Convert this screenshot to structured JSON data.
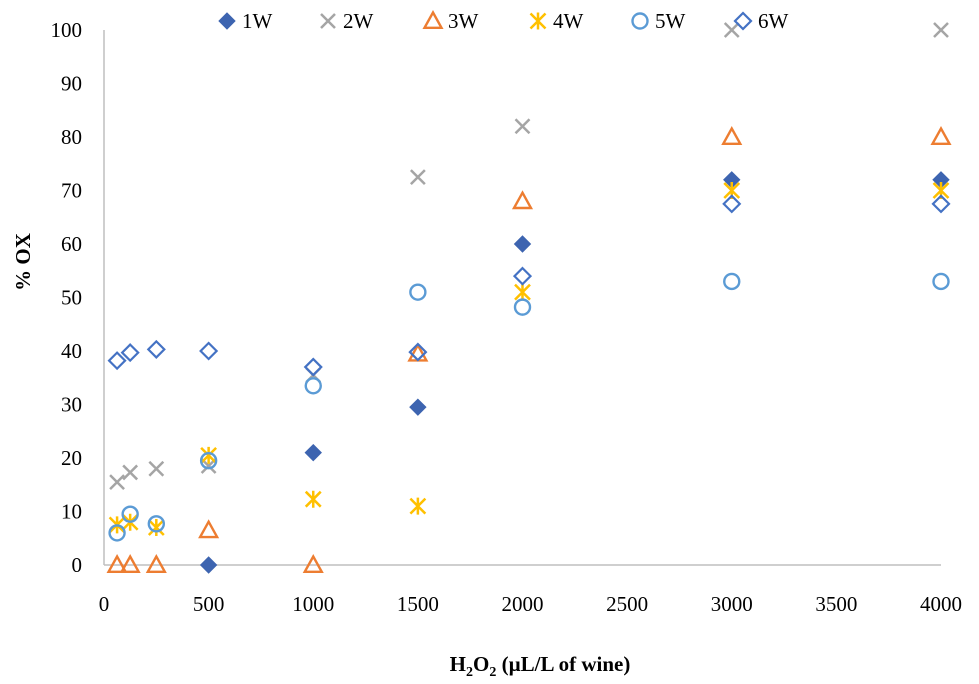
{
  "chart_data": {
    "type": "scatter",
    "title": "",
    "xlabel": "H2O2 (µL/L of wine)",
    "xlabel_parts": {
      "base1": "H",
      "sub1": "2",
      "base2": "O",
      "sub2": "2",
      "rest": " (µL/L of wine)"
    },
    "ylabel": "% OX",
    "xlim": [
      0,
      4000
    ],
    "ylim": [
      0,
      100
    ],
    "x_ticks": [
      0,
      500,
      1000,
      1500,
      2000,
      2500,
      3000,
      3500,
      4000
    ],
    "y_ticks": [
      0,
      10,
      20,
      30,
      40,
      50,
      60,
      70,
      80,
      90,
      100
    ],
    "grid": false,
    "legend_position": "top",
    "series": [
      {
        "name": "1W",
        "marker": "diamond-filled",
        "color": "#3d64b0",
        "points": [
          [
            500,
            0
          ],
          [
            1000,
            21
          ],
          [
            1500,
            29.5
          ],
          [
            2000,
            60
          ],
          [
            3000,
            72
          ],
          [
            4000,
            72
          ]
        ]
      },
      {
        "name": "2W",
        "marker": "x",
        "color": "#a5a5a5",
        "points": [
          [
            62.5,
            15.5
          ],
          [
            125,
            17.3
          ],
          [
            250,
            18
          ],
          [
            500,
            18.5
          ],
          [
            1000,
            35.5
          ],
          [
            1500,
            72.5
          ],
          [
            2000,
            82
          ],
          [
            3000,
            100
          ],
          [
            4000,
            100
          ]
        ]
      },
      {
        "name": "3W",
        "marker": "triangle",
        "color": "#ed7d31",
        "points": [
          [
            62.5,
            0
          ],
          [
            125,
            0
          ],
          [
            250,
            0
          ],
          [
            500,
            6.5
          ],
          [
            1000,
            0
          ],
          [
            1500,
            39.5
          ],
          [
            2000,
            68
          ],
          [
            3000,
            80
          ],
          [
            4000,
            80
          ]
        ]
      },
      {
        "name": "4W",
        "marker": "star",
        "color": "#ffc000",
        "points": [
          [
            62.5,
            7.5
          ],
          [
            125,
            8
          ],
          [
            250,
            7
          ],
          [
            500,
            20.5
          ],
          [
            1000,
            12.3
          ],
          [
            1500,
            11
          ],
          [
            2000,
            51
          ],
          [
            3000,
            70
          ],
          [
            4000,
            70
          ]
        ]
      },
      {
        "name": "5W",
        "marker": "circle",
        "color": "#5b9bd5",
        "points": [
          [
            62.5,
            6
          ],
          [
            125,
            9.5
          ],
          [
            250,
            7.7
          ],
          [
            500,
            19.5
          ],
          [
            1000,
            33.5
          ],
          [
            1500,
            51
          ],
          [
            2000,
            48.2
          ],
          [
            3000,
            53
          ],
          [
            4000,
            53
          ]
        ]
      },
      {
        "name": "6W",
        "marker": "diamond-open",
        "color": "#4472c4",
        "points": [
          [
            62.5,
            38.2
          ],
          [
            125,
            39.7
          ],
          [
            250,
            40.3
          ],
          [
            500,
            40
          ],
          [
            1000,
            37
          ],
          [
            1500,
            39.8
          ],
          [
            2000,
            54
          ],
          [
            3000,
            67.5
          ],
          [
            4000,
            67.5
          ]
        ]
      }
    ]
  }
}
